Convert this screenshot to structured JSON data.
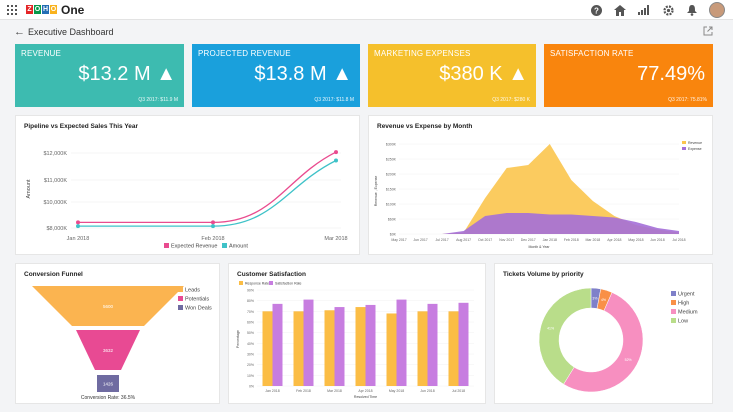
{
  "app": {
    "logo_letters": [
      "Z",
      "O",
      "H",
      "O"
    ],
    "logo_colors": [
      "#e42527",
      "#089949",
      "#226db4",
      "#f9b21d"
    ],
    "name": "One"
  },
  "icons": {
    "grid": "grid-icon",
    "help": "help-icon",
    "home": "home-icon",
    "analytics": "analytics-icon",
    "settings": "gear-icon",
    "bell": "bell-icon"
  },
  "page": {
    "back": "←",
    "title": "Executive Dashboard"
  },
  "kpis": [
    {
      "label": "REVENUE",
      "value": "$13.2 M ▲",
      "sub": "Q3 2017: $11.9 M",
      "color": "#3dbbb0"
    },
    {
      "label": "PROJECTED REVENUE",
      "value": "$13.8 M ▲",
      "sub": "Q3 2017: $11.8 M",
      "color": "#1aa0dc"
    },
    {
      "label": "MARKETING EXPENSES",
      "value": "$380 K ▲",
      "sub": "Q3 2017: $280 K",
      "color": "#f5c02c"
    },
    {
      "label": "SATISFACTION RATE",
      "value": "77.49%",
      "sub": "Q3 2017: 75.81%",
      "color": "#f9850d"
    }
  ],
  "chart_data": [
    {
      "type": "line",
      "title": "Pipeline vs Expected Sales This Year",
      "ylabel": "Amount",
      "x": [
        "Jan 2018",
        "Feb 2018",
        "Mar 2018"
      ],
      "yticks": [
        "$8,000K",
        "$10,000K",
        "$11,000K",
        "$12,000K"
      ],
      "series": [
        {
          "name": "Expected Revenue",
          "color": "#e94b8f",
          "values": [
            8300,
            8300,
            12050
          ]
        },
        {
          "name": "Amount",
          "color": "#3fc2c8",
          "values": [
            8100,
            8100,
            11600
          ]
        }
      ]
    },
    {
      "type": "area",
      "title": "Revenue vs Expense by Month",
      "xlabel": "Month & Year",
      "ylabel": "Revenue , Expense",
      "yticks": [
        "$0K",
        "$60K",
        "$100K",
        "$150K",
        "$200K",
        "$250K",
        "$300K"
      ],
      "x": [
        "May 2017",
        "Jun 2017",
        "Jul 2017",
        "Aug 2017",
        "Oct 2017",
        "Nov 2017",
        "Dec 2017",
        "Jan 2018",
        "Feb 2018",
        "Mar 2018",
        "Apr 2018",
        "May 2018",
        "Jun 2018",
        "Jul 2018"
      ],
      "series": [
        {
          "name": "Revenue",
          "color": "#fbc54e",
          "values": [
            0,
            0,
            0,
            5,
            120,
            220,
            230,
            300,
            180,
            110,
            60,
            30,
            15,
            5
          ]
        },
        {
          "name": "Expense",
          "color": "#a46fd8",
          "values": [
            0,
            0,
            0,
            10,
            60,
            70,
            70,
            65,
            65,
            60,
            55,
            40,
            20,
            10
          ]
        }
      ]
    },
    {
      "type": "funnel",
      "title": "Conversion Funnel",
      "legend": [
        {
          "name": "Leads",
          "color": "#fbb450"
        },
        {
          "name": "Potentials",
          "color": "#e84a93"
        },
        {
          "name": "Won Deals",
          "color": "#6f6ba1"
        }
      ],
      "values": [
        5600,
        3632,
        1426
      ],
      "footer": "Conversion Rate: 36.5%"
    },
    {
      "type": "bar",
      "title": "Customer Satisfaction",
      "xlabel": "Resolved Time",
      "ylabel": "Percentage",
      "categories": [
        "Jan 2018",
        "Feb 2018",
        "Mar 2018",
        "Apr 2018",
        "May 2018",
        "Jun 2018",
        "Jul 2018"
      ],
      "yticks": [
        "0%",
        "10%",
        "20%",
        "30%",
        "40%",
        "50%",
        "60%",
        "70%",
        "80%",
        "90%"
      ],
      "series": [
        {
          "name": "Response Rate",
          "color": "#fbbd45",
          "values": [
            70,
            70,
            71,
            74,
            68,
            70,
            70
          ]
        },
        {
          "name": "Satisfaction Rate",
          "color": "#c77de0",
          "values": [
            77,
            81,
            74,
            76,
            81,
            77,
            78
          ]
        }
      ]
    },
    {
      "type": "pie",
      "title": "Tickets Volume by priority",
      "series": [
        {
          "name": "Urgent",
          "color": "#7f80c9",
          "value": 3
        },
        {
          "name": "High",
          "color": "#f99047",
          "value": 3.6
        },
        {
          "name": "Medium",
          "color": "#f78fc0",
          "value": 52
        },
        {
          "name": "Low",
          "color": "#b9dd8a",
          "value": 41
        }
      ],
      "slice_labels": [
        "3%",
        "4%",
        "52%",
        "41%"
      ]
    }
  ]
}
